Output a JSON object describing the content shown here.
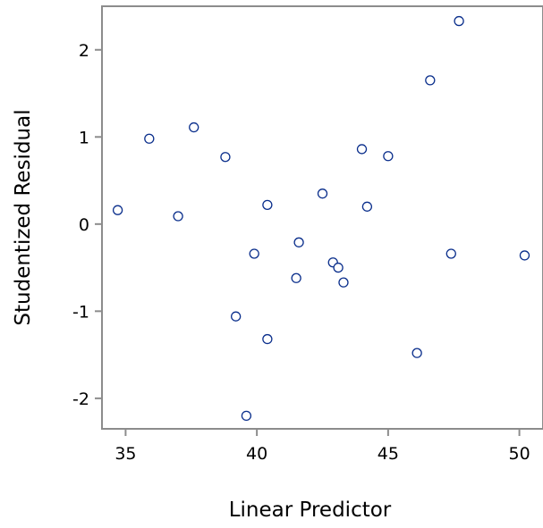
{
  "chart_data": {
    "type": "scatter",
    "xlabel": "Linear Predictor",
    "ylabel": "Studentized Residual",
    "xlim": [
      34.1,
      50.9
    ],
    "ylim": [
      -2.35,
      2.5
    ],
    "x_ticks": [
      35,
      40,
      45,
      50
    ],
    "y_ticks": [
      -2,
      -1,
      0,
      1,
      2
    ],
    "x_tick_labels": [
      "35",
      "40",
      "45",
      "50"
    ],
    "y_tick_labels": [
      "-2",
      "-1",
      "0",
      "1",
      "2"
    ],
    "grid": false,
    "legend": "none",
    "marker": "open-circle",
    "marker_color": "#0b2f8c",
    "frame_color": "#8c8c8c",
    "series": [
      {
        "x": [
          34.7,
          35.9,
          37.0,
          37.6,
          38.8,
          39.2,
          39.6,
          39.9,
          40.4,
          40.4,
          41.5,
          41.6,
          42.5,
          42.9,
          43.1,
          43.3,
          44.0,
          44.2,
          45.0,
          46.1,
          46.6,
          47.4,
          47.7,
          50.2
        ],
        "y": [
          0.16,
          0.98,
          0.09,
          1.11,
          0.77,
          -1.06,
          -2.2,
          -0.34,
          0.22,
          -1.32,
          -0.62,
          -0.21,
          0.35,
          -0.44,
          -0.5,
          -0.67,
          0.86,
          0.2,
          0.78,
          -1.48,
          1.65,
          -0.34,
          2.33,
          -0.36
        ]
      }
    ]
  }
}
